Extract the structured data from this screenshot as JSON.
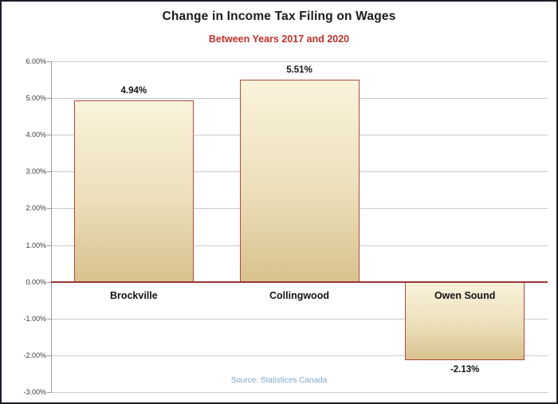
{
  "chart_data": {
    "type": "bar",
    "title": "Change in Income Tax Filing on Wages",
    "subtitle": "Between Years 2017 and 2020",
    "source": "Source: Statistices Canada",
    "categories": [
      "Brockville",
      "Collingwood",
      "Owen Sound"
    ],
    "values": [
      4.94,
      5.51,
      -2.13
    ],
    "value_labels": [
      "4.94%",
      "5.51%",
      "-2.13%"
    ],
    "y_tick_values": [
      6,
      5,
      4,
      3,
      2,
      1,
      0,
      -1,
      -2,
      -3
    ],
    "y_tick_labels": [
      "6.00%",
      "5.00%",
      "4.00%",
      "3.00%",
      "2.00%",
      "1.00%",
      "0.00%",
      "-1.00%",
      "-2.00%",
      "-3.00%"
    ],
    "ylim": [
      -3,
      6
    ],
    "grid": true,
    "legend": false,
    "colors": {
      "title": "#1a1a1a",
      "subtitle": "#be312b",
      "source": "#7fa8cc",
      "bar_fill_top": "#faf3dc",
      "bar_fill_mid": "#ecdfba",
      "bar_fill_bottom": "#d8c28e",
      "bar_border": "#ae4a3c",
      "zero_line": "#953735",
      "gridline": "#c9c9c9",
      "axis_line": "#9b9b9b",
      "axis_text": "#3a3a3a"
    }
  }
}
